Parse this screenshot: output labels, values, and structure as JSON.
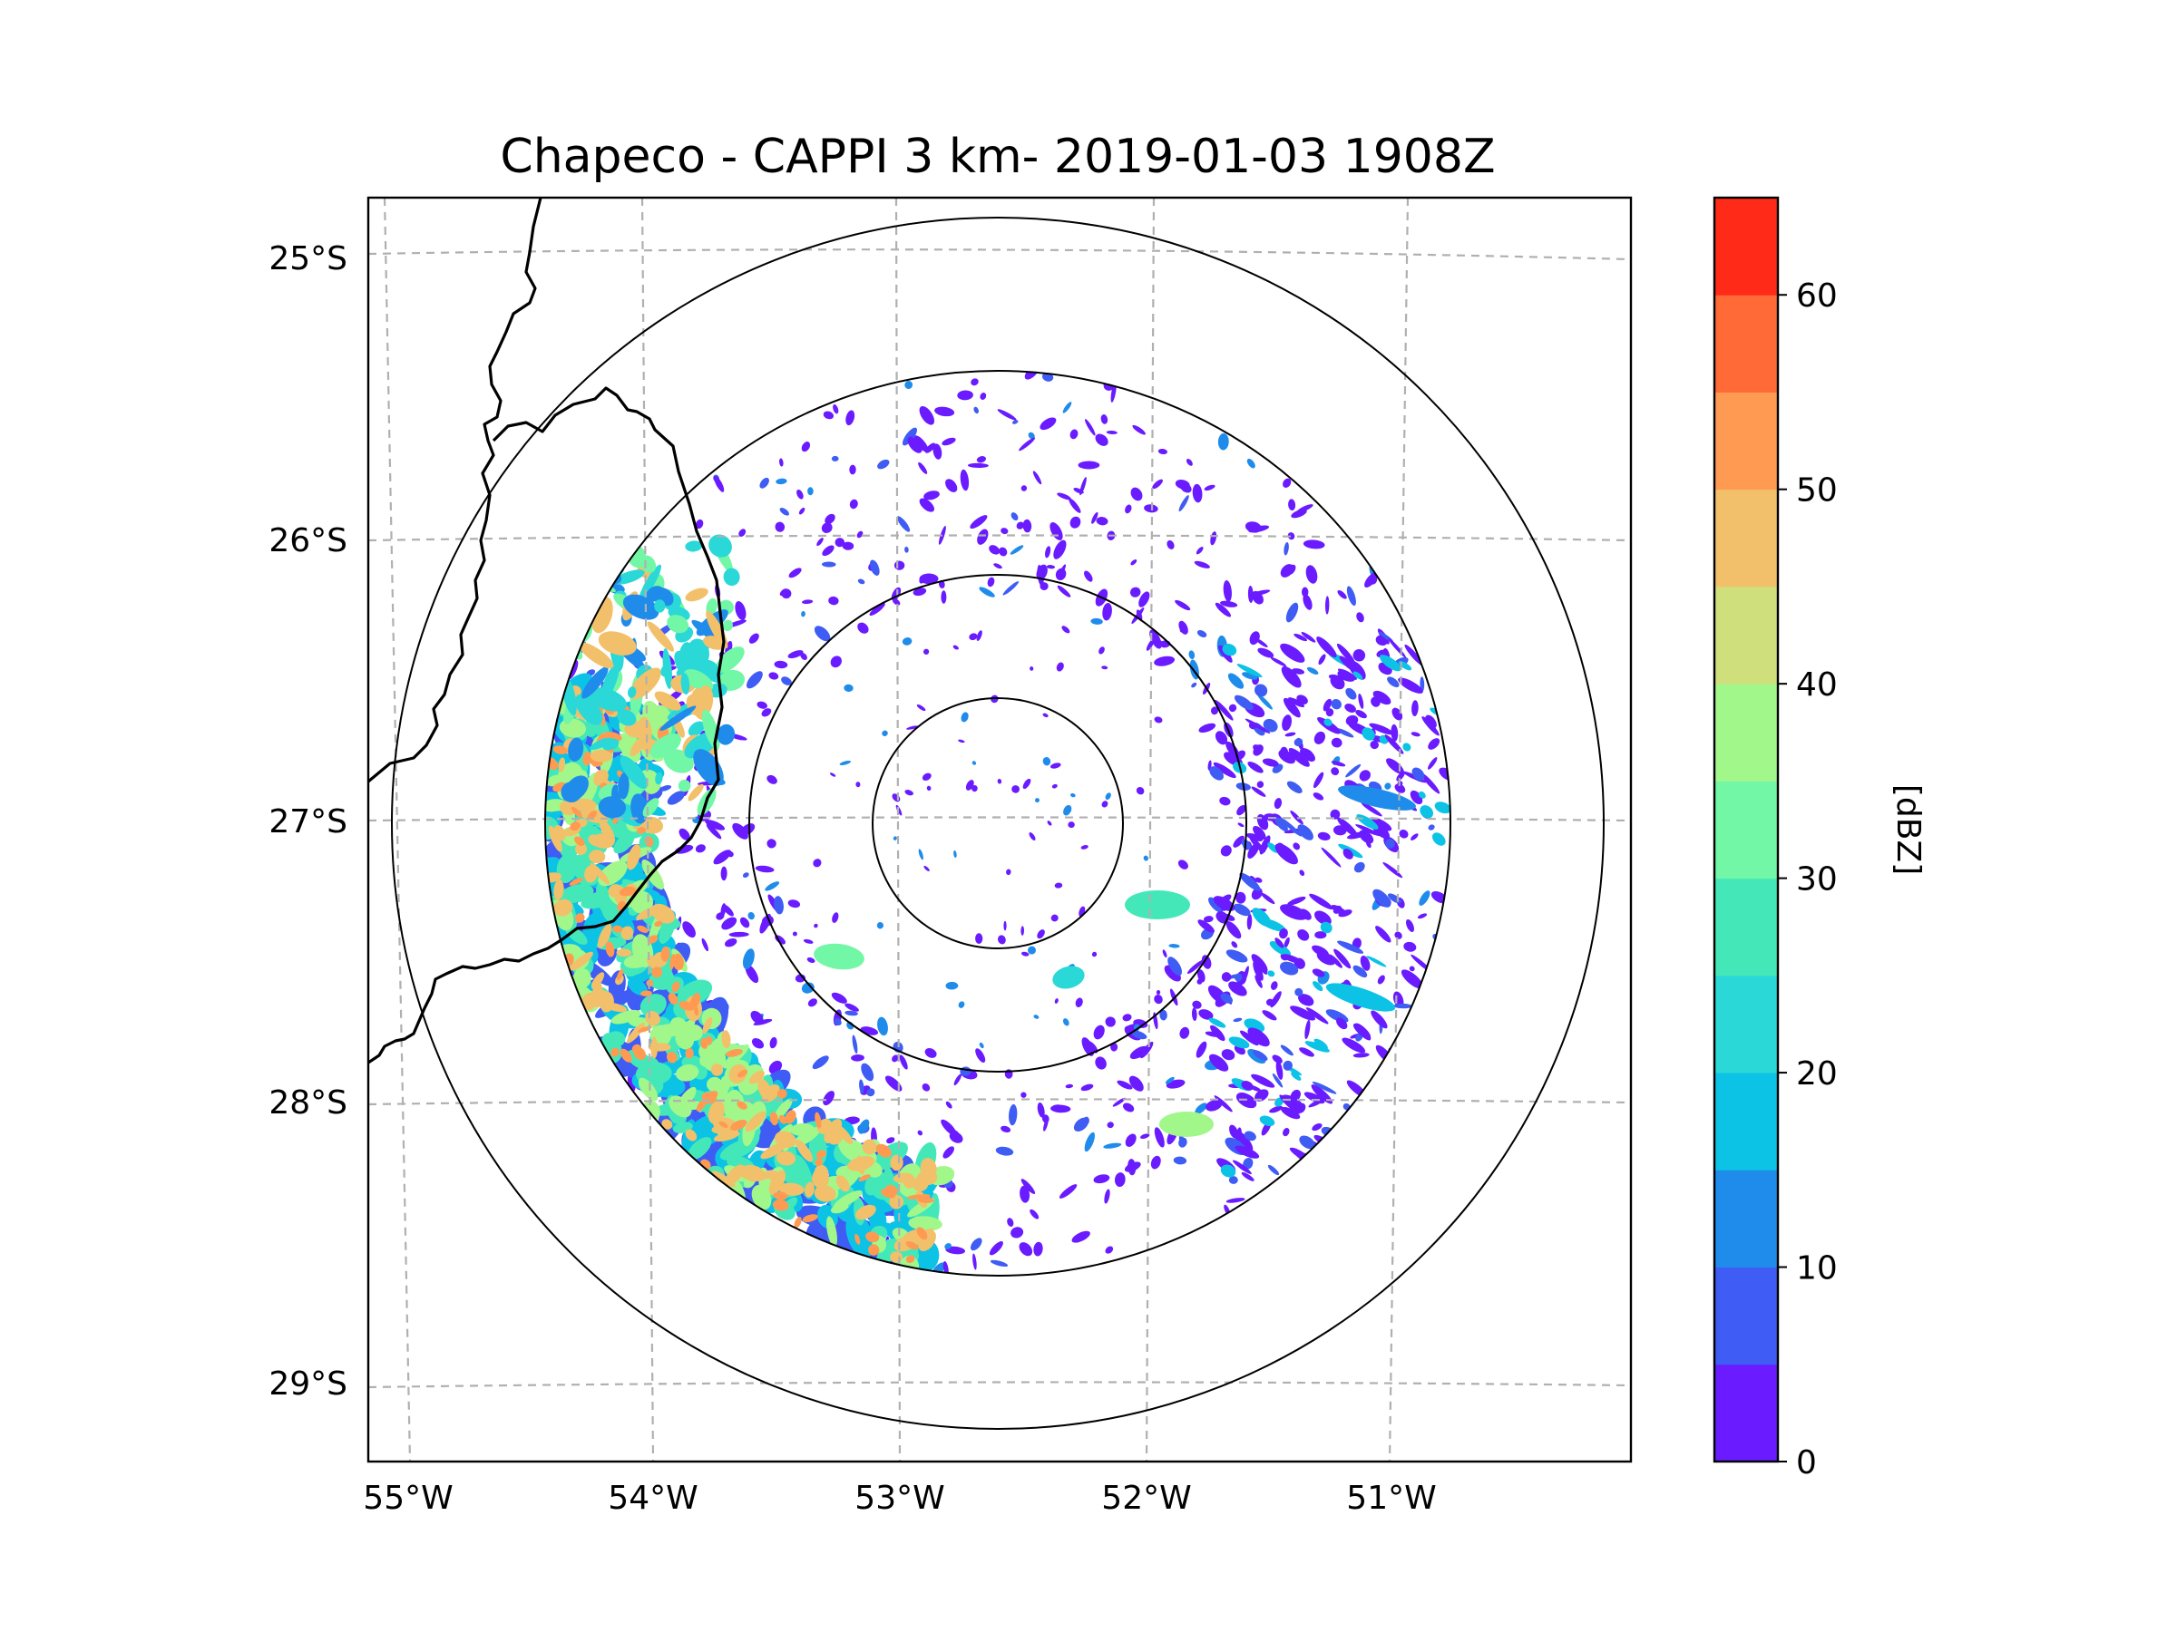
{
  "title": "Chapeco - CAPPI 3 km- 2019-01-03 1908Z",
  "map": {
    "lon_ticks": [
      "55°W",
      "54°W",
      "53°W",
      "52°W",
      "51°W"
    ],
    "lat_ticks": [
      "25°S",
      "26°S",
      "27°S",
      "28°S",
      "29°S"
    ],
    "gridlines": "dashed",
    "range_rings": 4
  },
  "colorbar": {
    "label": "[dBZ]",
    "tick_labels": [
      "0",
      "10",
      "20",
      "30",
      "40",
      "50",
      "60"
    ],
    "levels": [
      0,
      5,
      10,
      15,
      20,
      25,
      30,
      35,
      40,
      45,
      50,
      55,
      60,
      65
    ],
    "colors": [
      "#6a1bff",
      "#3f5cf4",
      "#1f8ceb",
      "#0cc3e6",
      "#2ad8d8",
      "#44e8b8",
      "#72f7a6",
      "#a2f78b",
      "#cfdf7c",
      "#f2c06a",
      "#ff9a52",
      "#ff6a36",
      "#ff2a17"
    ]
  },
  "chart_data": {
    "type": "heatmap",
    "title": "Chapeco - CAPPI 3 km- 2019-01-03 1908Z",
    "xlabel": "",
    "ylabel": "",
    "xlim": [
      -55.2,
      -50.0
    ],
    "ylim": [
      -29.3,
      -24.8
    ],
    "value_label": "[dBZ]",
    "value_range": [
      0,
      65
    ]
  }
}
